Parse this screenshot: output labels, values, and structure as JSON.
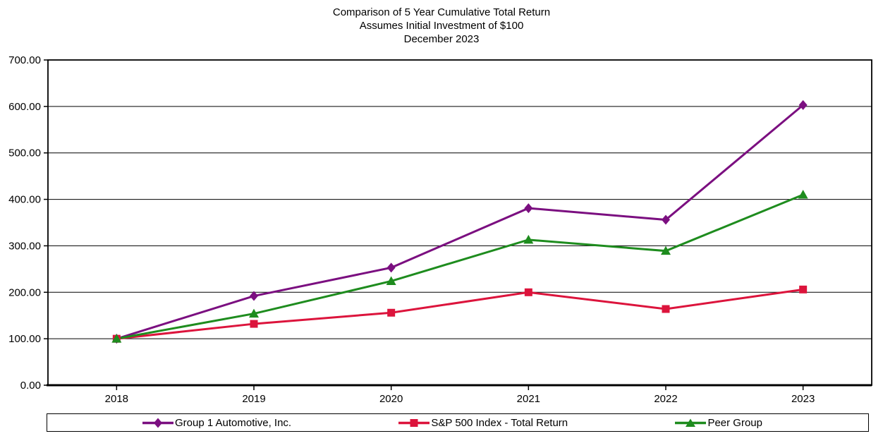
{
  "chart_data": {
    "type": "line",
    "title": "Comparison of 5 Year Cumulative Total Return",
    "subtitle": "Assumes Initial Investment of $100",
    "subtitle2": "December 2023",
    "categories": [
      "2018",
      "2019",
      "2020",
      "2021",
      "2022",
      "2023"
    ],
    "series": [
      {
        "name": "Group 1 Automotive, Inc.",
        "color": "#7B0F80",
        "marker": "diamond",
        "values": [
          100,
          192,
          253,
          381,
          356,
          603
        ]
      },
      {
        "name": "S&P 500 Index - Total Return",
        "color": "#DC143C",
        "marker": "square",
        "values": [
          100,
          132,
          156,
          200,
          164,
          206
        ]
      },
      {
        "name": "Peer Group",
        "color": "#1E8C1E",
        "marker": "triangle",
        "values": [
          100,
          154,
          224,
          313,
          289,
          410
        ]
      }
    ],
    "xlabel": "",
    "ylabel": "",
    "ylim": [
      0,
      700
    ],
    "ytick_step": 100,
    "ytick_labels": [
      "0.00",
      "100.00",
      "200.00",
      "300.00",
      "400.00",
      "500.00",
      "600.00",
      "700.00"
    ],
    "grid": "horizontal",
    "legend_position": "bottom",
    "colors": {
      "axis": "#000000",
      "gridline": "#000000",
      "background": "#ffffff",
      "text": "#000000"
    }
  }
}
